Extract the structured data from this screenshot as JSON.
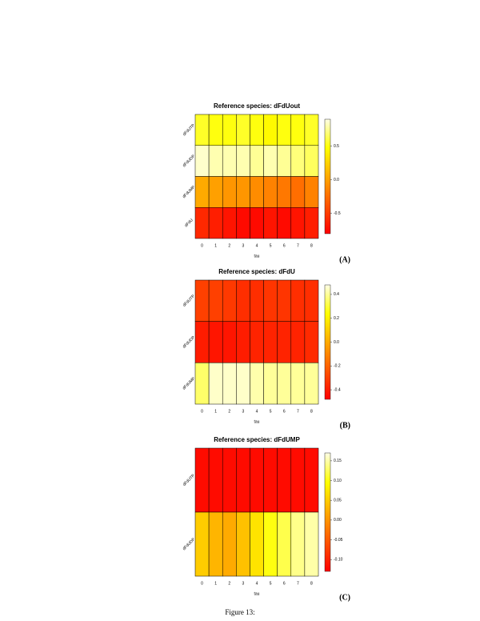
{
  "caption": "Figure 13:",
  "chart_data": [
    {
      "type": "heatmap",
      "title": "Reference species: dFdUout",
      "label": "(A)",
      "xlabel": "tau",
      "x": [
        "0",
        "1",
        "2",
        "3",
        "4",
        "5",
        "6",
        "7",
        "8"
      ],
      "rows": [
        "dFdUTP",
        "dFdUDP",
        "dFdUMP",
        "dFdU"
      ],
      "values": [
        [
          0.55,
          0.5,
          0.5,
          0.55,
          0.5,
          0.45,
          0.5,
          0.5,
          0.55
        ],
        [
          0.85,
          0.8,
          0.8,
          0.8,
          0.75,
          0.8,
          0.75,
          0.7,
          0.65
        ],
        [
          0.05,
          0.0,
          -0.05,
          -0.05,
          -0.1,
          -0.15,
          -0.2,
          -0.25,
          -0.15
        ],
        [
          -0.6,
          -0.65,
          -0.7,
          -0.75,
          -0.75,
          -0.7,
          -0.75,
          -0.7,
          -0.65
        ]
      ],
      "zlim": [
        -0.8,
        0.9
      ],
      "zticks": [
        0.5,
        {
          "value": 0,
          "label": "0.0"
        },
        -0.5
      ],
      "colormap": "heat"
    },
    {
      "type": "heatmap",
      "title": "Reference species: dFdU",
      "label": "(B)",
      "xlabel": "tau",
      "x": [
        "0",
        "1",
        "2",
        "3",
        "4",
        "5",
        "6",
        "7",
        "8"
      ],
      "rows": [
        "dFdUTP",
        "dFdUDP",
        "dFdUMP"
      ],
      "values": [
        [
          -0.3,
          -0.3,
          -0.32,
          -0.35,
          -0.35,
          -0.33,
          -0.33,
          -0.35,
          -0.35
        ],
        [
          -0.4,
          -0.42,
          -0.42,
          -0.4,
          -0.38,
          -0.38,
          -0.38,
          -0.38,
          -0.36
        ],
        [
          0.35,
          0.45,
          0.45,
          0.45,
          0.42,
          0.4,
          0.4,
          0.4,
          0.4
        ]
      ],
      "zlim": [
        -0.48,
        0.48
      ],
      "zticks": [
        0.4,
        0.2,
        {
          "value": 0,
          "label": "0.0"
        },
        -0.2,
        -0.4
      ],
      "colormap": "heat"
    },
    {
      "type": "heatmap",
      "title": "Reference species: dFdUMP",
      "label": "(C)",
      "xlabel": "tau",
      "x": [
        "0",
        "1",
        "2",
        "3",
        "4",
        "5",
        "6",
        "7",
        "8"
      ],
      "rows": [
        "dFdUTP",
        "dFdUDP"
      ],
      "values": [
        [
          -0.12,
          -0.12,
          -0.12,
          -0.12,
          -0.12,
          -0.12,
          -0.12,
          -0.12,
          -0.12
        ],
        [
          0.05,
          0.03,
          0.02,
          0.04,
          0.07,
          0.1,
          0.12,
          0.14,
          0.15
        ]
      ],
      "zlim": [
        -0.13,
        0.17
      ],
      "zticks": [
        0.15,
        {
          "value": 0.1,
          "label": "0.10"
        },
        0.05,
        {
          "value": 0,
          "label": "0.00"
        },
        -0.05,
        {
          "value": -0.1,
          "label": "-0.10"
        }
      ],
      "colormap": "heat"
    }
  ]
}
